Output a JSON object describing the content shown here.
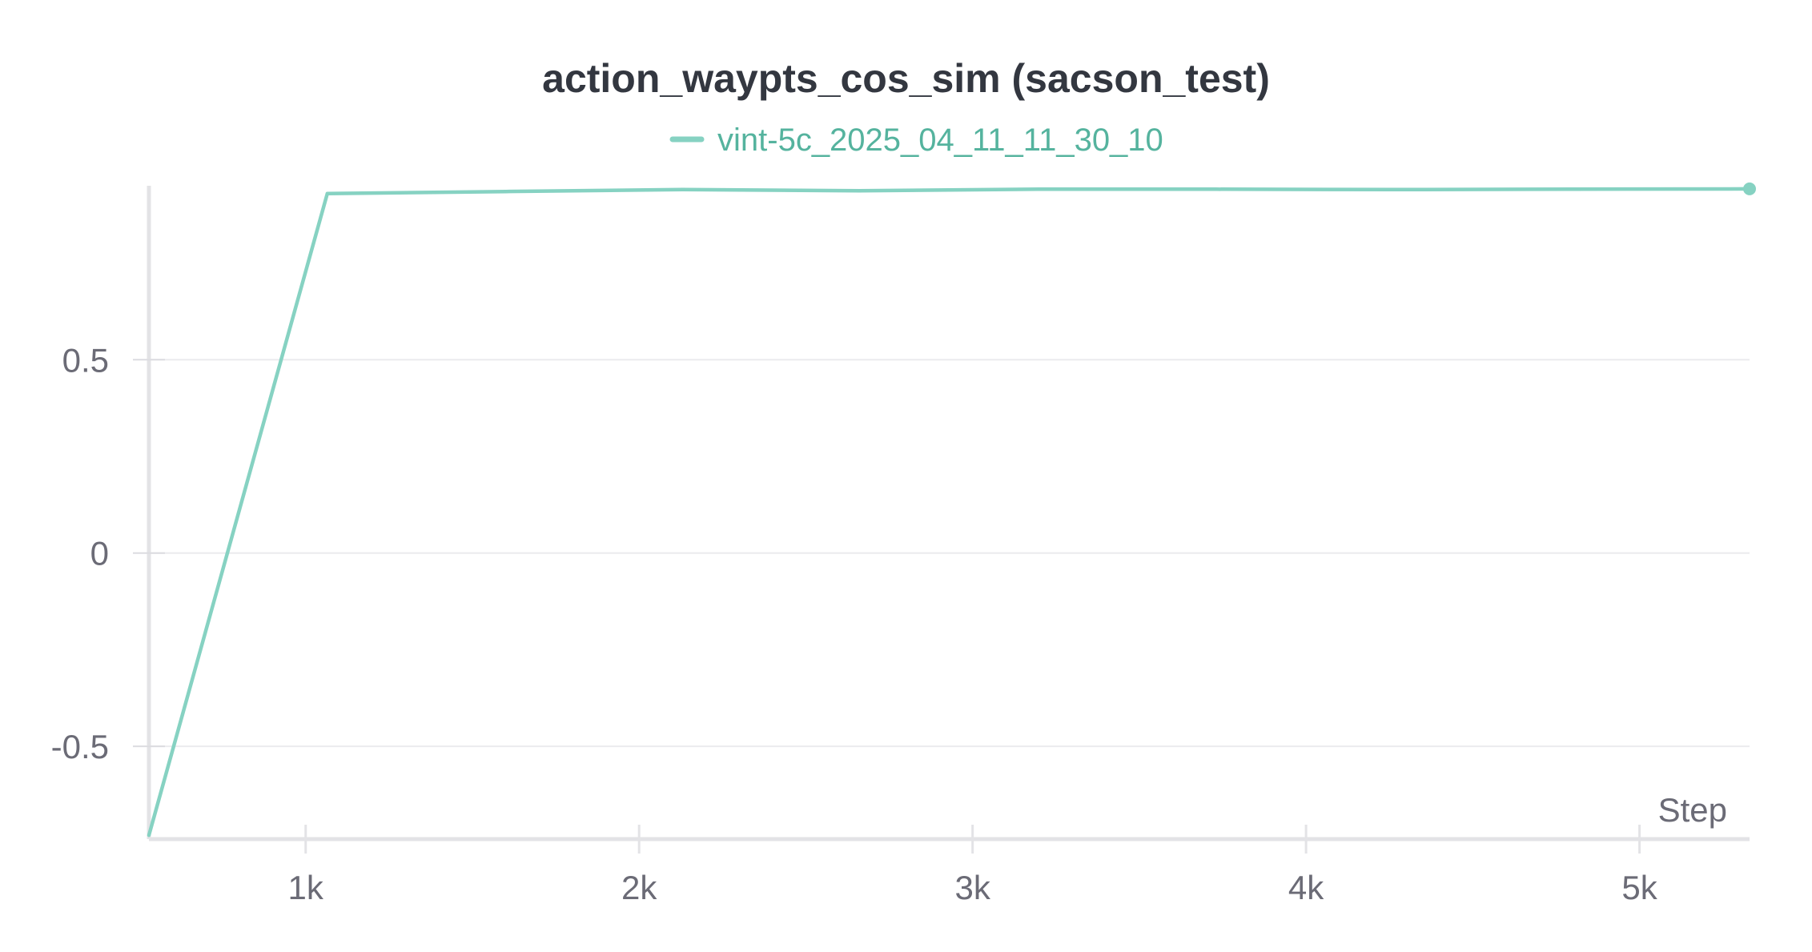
{
  "chart_data": {
    "type": "line",
    "title": "action_waypts_cos_sim (sacson_test)",
    "xlabel": "Step",
    "ylabel": "",
    "xlim": [
      530,
      5330
    ],
    "ylim": [
      -0.74,
      0.95
    ],
    "x_ticks": [
      {
        "value": 1000,
        "label": "1k"
      },
      {
        "value": 2000,
        "label": "2k"
      },
      {
        "value": 3000,
        "label": "3k"
      },
      {
        "value": 4000,
        "label": "4k"
      },
      {
        "value": 5000,
        "label": "5k"
      }
    ],
    "y_ticks": [
      {
        "value": 0.5,
        "label": "0.5"
      },
      {
        "value": 0,
        "label": "0"
      },
      {
        "value": -0.5,
        "label": "-0.5"
      }
    ],
    "grid": true,
    "legend_position": "top-center",
    "series": [
      {
        "name": "vint-5c_2025_04_11_11_30_10",
        "color": "#86d2c2",
        "legend_text_color": "#55b39e",
        "x": [
          530,
          1065,
          1600,
          2130,
          2660,
          3200,
          3730,
          4260,
          4800,
          5330
        ],
        "y": [
          -0.73,
          0.93,
          0.935,
          0.94,
          0.937,
          0.941,
          0.941,
          0.94,
          0.941,
          0.942
        ]
      }
    ]
  }
}
